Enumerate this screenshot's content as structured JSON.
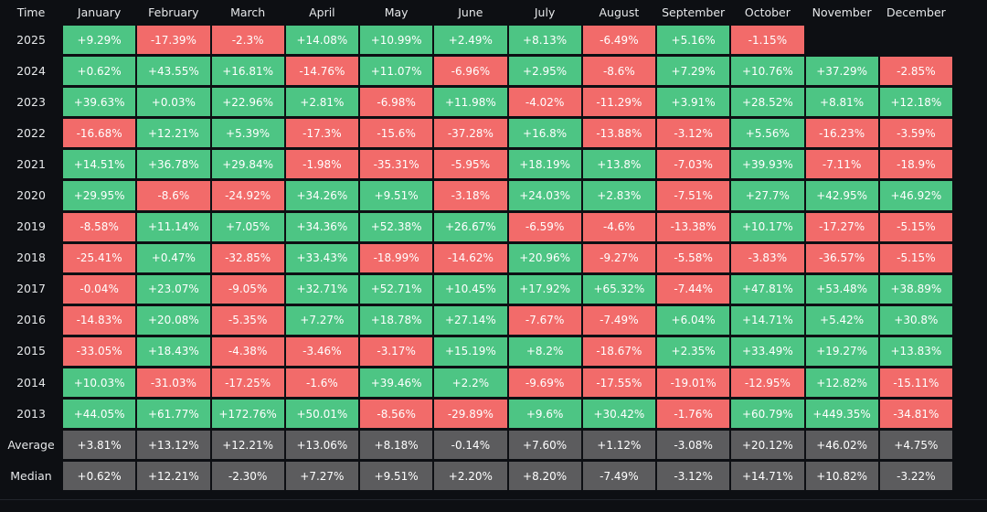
{
  "chart_data": {
    "type": "heatmap",
    "title": "",
    "corner_label": "Time",
    "columns": [
      "January",
      "February",
      "March",
      "April",
      "May",
      "June",
      "July",
      "August",
      "September",
      "October",
      "November",
      "December"
    ],
    "rows": [
      {
        "label": "2025",
        "values": [
          "+9.29%",
          "-17.39%",
          "-2.3%",
          "+14.08%",
          "+10.99%",
          "+2.49%",
          "+8.13%",
          "-6.49%",
          "+5.16%",
          "-1.15%",
          null,
          null
        ]
      },
      {
        "label": "2024",
        "values": [
          "+0.62%",
          "+43.55%",
          "+16.81%",
          "-14.76%",
          "+11.07%",
          "-6.96%",
          "+2.95%",
          "-8.6%",
          "+7.29%",
          "+10.76%",
          "+37.29%",
          "-2.85%"
        ]
      },
      {
        "label": "2023",
        "values": [
          "+39.63%",
          "+0.03%",
          "+22.96%",
          "+2.81%",
          "-6.98%",
          "+11.98%",
          "-4.02%",
          "-11.29%",
          "+3.91%",
          "+28.52%",
          "+8.81%",
          "+12.18%"
        ]
      },
      {
        "label": "2022",
        "values": [
          "-16.68%",
          "+12.21%",
          "+5.39%",
          "-17.3%",
          "-15.6%",
          "-37.28%",
          "+16.8%",
          "-13.88%",
          "-3.12%",
          "+5.56%",
          "-16.23%",
          "-3.59%"
        ]
      },
      {
        "label": "2021",
        "values": [
          "+14.51%",
          "+36.78%",
          "+29.84%",
          "-1.98%",
          "-35.31%",
          "-5.95%",
          "+18.19%",
          "+13.8%",
          "-7.03%",
          "+39.93%",
          "-7.11%",
          "-18.9%"
        ]
      },
      {
        "label": "2020",
        "values": [
          "+29.95%",
          "-8.6%",
          "-24.92%",
          "+34.26%",
          "+9.51%",
          "-3.18%",
          "+24.03%",
          "+2.83%",
          "-7.51%",
          "+27.7%",
          "+42.95%",
          "+46.92%"
        ]
      },
      {
        "label": "2019",
        "values": [
          "-8.58%",
          "+11.14%",
          "+7.05%",
          "+34.36%",
          "+52.38%",
          "+26.67%",
          "-6.59%",
          "-4.6%",
          "-13.38%",
          "+10.17%",
          "-17.27%",
          "-5.15%"
        ]
      },
      {
        "label": "2018",
        "values": [
          "-25.41%",
          "+0.47%",
          "-32.85%",
          "+33.43%",
          "-18.99%",
          "-14.62%",
          "+20.96%",
          "-9.27%",
          "-5.58%",
          "-3.83%",
          "-36.57%",
          "-5.15%"
        ]
      },
      {
        "label": "2017",
        "values": [
          "-0.04%",
          "+23.07%",
          "-9.05%",
          "+32.71%",
          "+52.71%",
          "+10.45%",
          "+17.92%",
          "+65.32%",
          "-7.44%",
          "+47.81%",
          "+53.48%",
          "+38.89%"
        ]
      },
      {
        "label": "2016",
        "values": [
          "-14.83%",
          "+20.08%",
          "-5.35%",
          "+7.27%",
          "+18.78%",
          "+27.14%",
          "-7.67%",
          "-7.49%",
          "+6.04%",
          "+14.71%",
          "+5.42%",
          "+30.8%"
        ]
      },
      {
        "label": "2015",
        "values": [
          "-33.05%",
          "+18.43%",
          "-4.38%",
          "-3.46%",
          "-3.17%",
          "+15.19%",
          "+8.2%",
          "-18.67%",
          "+2.35%",
          "+33.49%",
          "+19.27%",
          "+13.83%"
        ]
      },
      {
        "label": "2014",
        "values": [
          "+10.03%",
          "-31.03%",
          "-17.25%",
          "-1.6%",
          "+39.46%",
          "+2.2%",
          "-9.69%",
          "-17.55%",
          "-19.01%",
          "-12.95%",
          "+12.82%",
          "-15.11%"
        ]
      },
      {
        "label": "2013",
        "values": [
          "+44.05%",
          "+61.77%",
          "+172.76%",
          "+50.01%",
          "-8.56%",
          "-29.89%",
          "+9.6%",
          "+30.42%",
          "-1.76%",
          "+60.79%",
          "+449.35%",
          "-34.81%"
        ]
      },
      {
        "label": "Average",
        "stat": true,
        "values": [
          "+3.81%",
          "+13.12%",
          "+12.21%",
          "+13.06%",
          "+8.18%",
          "-0.14%",
          "+7.60%",
          "+1.12%",
          "-3.08%",
          "+20.12%",
          "+46.02%",
          "+4.75%"
        ]
      },
      {
        "label": "Median",
        "stat": true,
        "values": [
          "+0.62%",
          "+12.21%",
          "-2.30%",
          "+7.27%",
          "+9.51%",
          "+2.20%",
          "+8.20%",
          "-7.49%",
          "-3.12%",
          "+14.71%",
          "+10.82%",
          "-3.22%"
        ]
      }
    ],
    "colors": {
      "positive": "#4dc584",
      "negative": "#f26b6a",
      "stat": "#5c5c5e",
      "background": "#0d0f13"
    }
  }
}
